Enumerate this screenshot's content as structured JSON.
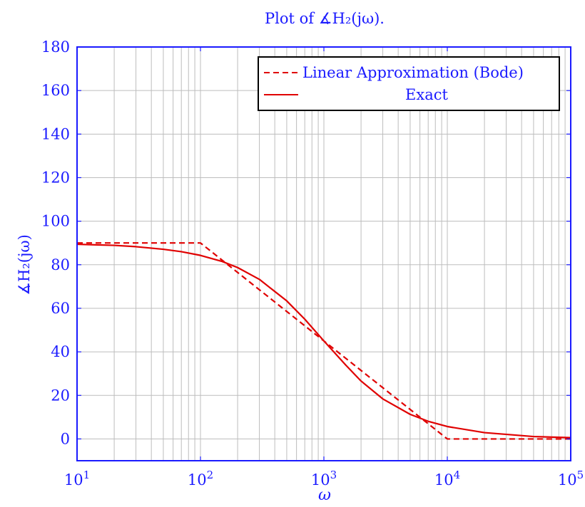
{
  "chart_data": {
    "type": "line",
    "title": "Plot of ∡H₂(jω).",
    "xlabel": "ω",
    "ylabel": "∡H₂(jω)",
    "x_scale": "log",
    "xlim": [
      10,
      100000
    ],
    "ylim": [
      -10,
      180
    ],
    "x_ticks": [
      {
        "value": 10,
        "base": "10",
        "exp": "1"
      },
      {
        "value": 100,
        "base": "10",
        "exp": "2"
      },
      {
        "value": 1000,
        "base": "10",
        "exp": "3"
      },
      {
        "value": 10000,
        "base": "10",
        "exp": "4"
      },
      {
        "value": 100000,
        "base": "10",
        "exp": "5"
      }
    ],
    "y_ticks": [
      0,
      20,
      40,
      60,
      80,
      100,
      120,
      140,
      160,
      180
    ],
    "grid": true,
    "legend_position": "top-right",
    "series": [
      {
        "name": "Linear Approximation (Bode)",
        "style": "dashed",
        "color": "#e00000",
        "points": [
          [
            10,
            90
          ],
          [
            100,
            90
          ],
          [
            1000,
            45
          ],
          [
            10000,
            0
          ],
          [
            100000,
            0
          ]
        ]
      },
      {
        "name": "Exact",
        "style": "solid",
        "color": "#e00000",
        "points": [
          [
            10,
            89.4
          ],
          [
            20,
            88.9
          ],
          [
            30,
            88.3
          ],
          [
            50,
            87.1
          ],
          [
            70,
            86.0
          ],
          [
            100,
            84.3
          ],
          [
            150,
            81.5
          ],
          [
            200,
            78.7
          ],
          [
            300,
            73.3
          ],
          [
            500,
            63.4
          ],
          [
            700,
            55.0
          ],
          [
            1000,
            45.0
          ],
          [
            1500,
            34.0
          ],
          [
            2000,
            26.6
          ],
          [
            3000,
            18.4
          ],
          [
            5000,
            11.3
          ],
          [
            7000,
            8.1
          ],
          [
            10000,
            5.7
          ],
          [
            20000,
            2.9
          ],
          [
            50000,
            1.1
          ],
          [
            100000,
            0.6
          ]
        ]
      }
    ]
  }
}
